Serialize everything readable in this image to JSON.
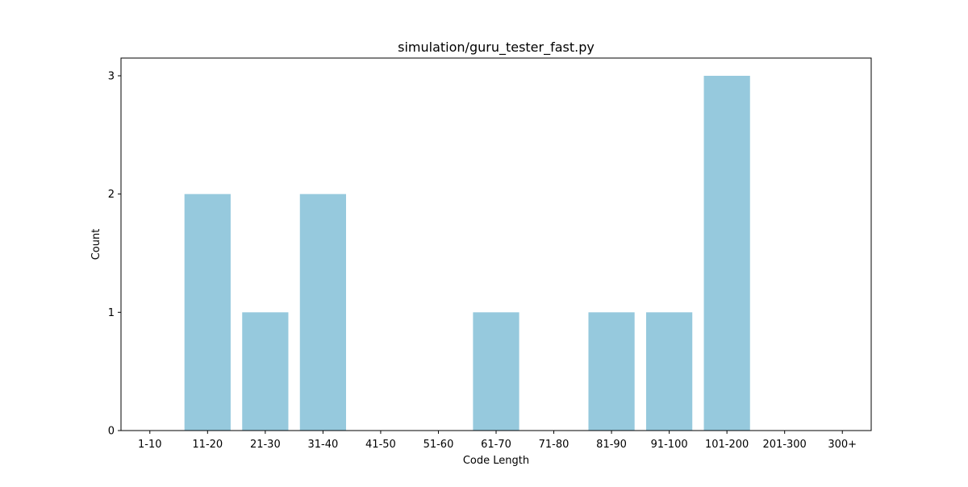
{
  "chart_data": {
    "type": "bar",
    "title": "simulation/guru_tester_fast.py",
    "xlabel": "Code Length",
    "ylabel": "Count",
    "categories": [
      "1-10",
      "11-20",
      "21-30",
      "31-40",
      "41-50",
      "51-60",
      "61-70",
      "71-80",
      "81-90",
      "91-100",
      "101-200",
      "201-300",
      "300+"
    ],
    "values": [
      0,
      2,
      1,
      2,
      0,
      0,
      1,
      0,
      1,
      1,
      3,
      0,
      0
    ],
    "ylim": [
      0,
      3.15
    ],
    "yticks": [
      0,
      1,
      2,
      3
    ],
    "grid": false,
    "legend": "none",
    "bar_color": "#96c9dd"
  }
}
